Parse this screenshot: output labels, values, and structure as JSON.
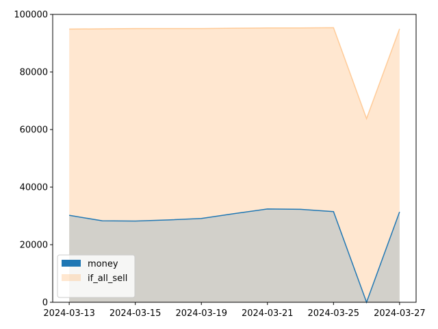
{
  "chart_data": {
    "type": "area",
    "categories": [
      "2024-03-13",
      null,
      "2024-03-15",
      null,
      "2024-03-19",
      null,
      "2024-03-21",
      null,
      "2024-03-25",
      null,
      "2024-03-27"
    ],
    "series": [
      {
        "name": "money",
        "color": "#1f77b4",
        "values": [
          30200,
          28300,
          28200,
          28600,
          29100,
          30800,
          32400,
          32300,
          31500,
          0,
          31400
        ]
      },
      {
        "name": "if_all_sell",
        "color": "#ffbb78",
        "values": [
          94900,
          95000,
          95100,
          95100,
          95100,
          95200,
          95300,
          95300,
          95400,
          63800,
          95000
        ]
      }
    ],
    "ylim": [
      0,
      100000
    ],
    "yticks": [
      0,
      20000,
      40000,
      60000,
      80000,
      100000
    ],
    "legend": "lower left"
  }
}
